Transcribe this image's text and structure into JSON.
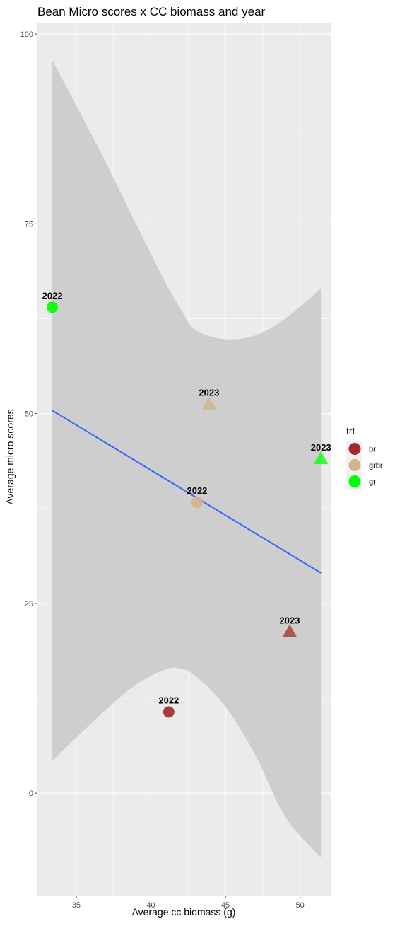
{
  "chart_data": {
    "type": "scatter",
    "title": "Bean Micro scores x CC biomass and year",
    "xlabel": "Average cc biomass (g)",
    "ylabel": "Average micro scores",
    "xlim": [
      32.4,
      52.1
    ],
    "ylim": [
      -13.5,
      101.5
    ],
    "x_ticks": [
      35,
      40,
      45,
      50
    ],
    "y_ticks": [
      0,
      25,
      50,
      75,
      100
    ],
    "x_tick_labels": [
      "35",
      "40",
      "45",
      "50"
    ],
    "y_tick_labels": [
      "0",
      "25",
      "50",
      "75",
      "100"
    ],
    "grid": true,
    "legend": {
      "title": "trt",
      "position": "right",
      "entries": [
        {
          "label": "br",
          "color": "#A52A2A"
        },
        {
          "label": "grbr",
          "color": "#D2B48C"
        },
        {
          "label": "gr",
          "color": "#00FF00"
        }
      ]
    },
    "points": [
      {
        "trt": "gr",
        "x": 33.4,
        "y": 64.0,
        "label": "2022",
        "shape": "circle"
      },
      {
        "trt": "grbr",
        "x": 43.9,
        "y": 51.2,
        "label": "2023",
        "shape": "triangle"
      },
      {
        "trt": "gr",
        "x": 51.4,
        "y": 44.0,
        "label": "2023",
        "shape": "triangle"
      },
      {
        "trt": "grbr",
        "x": 43.1,
        "y": 38.3,
        "label": "2022",
        "shape": "circle"
      },
      {
        "trt": "br",
        "x": 49.3,
        "y": 21.2,
        "label": "2023",
        "shape": "triangle"
      },
      {
        "trt": "br",
        "x": 41.2,
        "y": 10.7,
        "label": "2022",
        "shape": "circle"
      }
    ],
    "fit_line": {
      "x": [
        33.4,
        51.4
      ],
      "y": [
        50.4,
        29.0
      ],
      "color": "#3366FF"
    },
    "confidence_band": {
      "x": [
        33.4,
        35,
        37,
        39,
        41,
        42,
        43,
        45,
        47,
        49,
        51.4
      ],
      "lower": [
        4.2,
        7.3,
        11.0,
        14.3,
        16.3,
        16.4,
        15.4,
        11.4,
        5.0,
        -3.1,
        -8.5
      ],
      "upper": [
        96.5,
        90.6,
        83.0,
        75.0,
        67.2,
        63.8,
        61.0,
        59.8,
        60.3,
        62.5,
        66.5
      ]
    },
    "colors": {
      "panel_background": "#EBEBEB",
      "grid": "#FFFFFF",
      "band": "#CCCCCC",
      "text": "#000000",
      "tick_text": "#4D4D4D"
    }
  }
}
